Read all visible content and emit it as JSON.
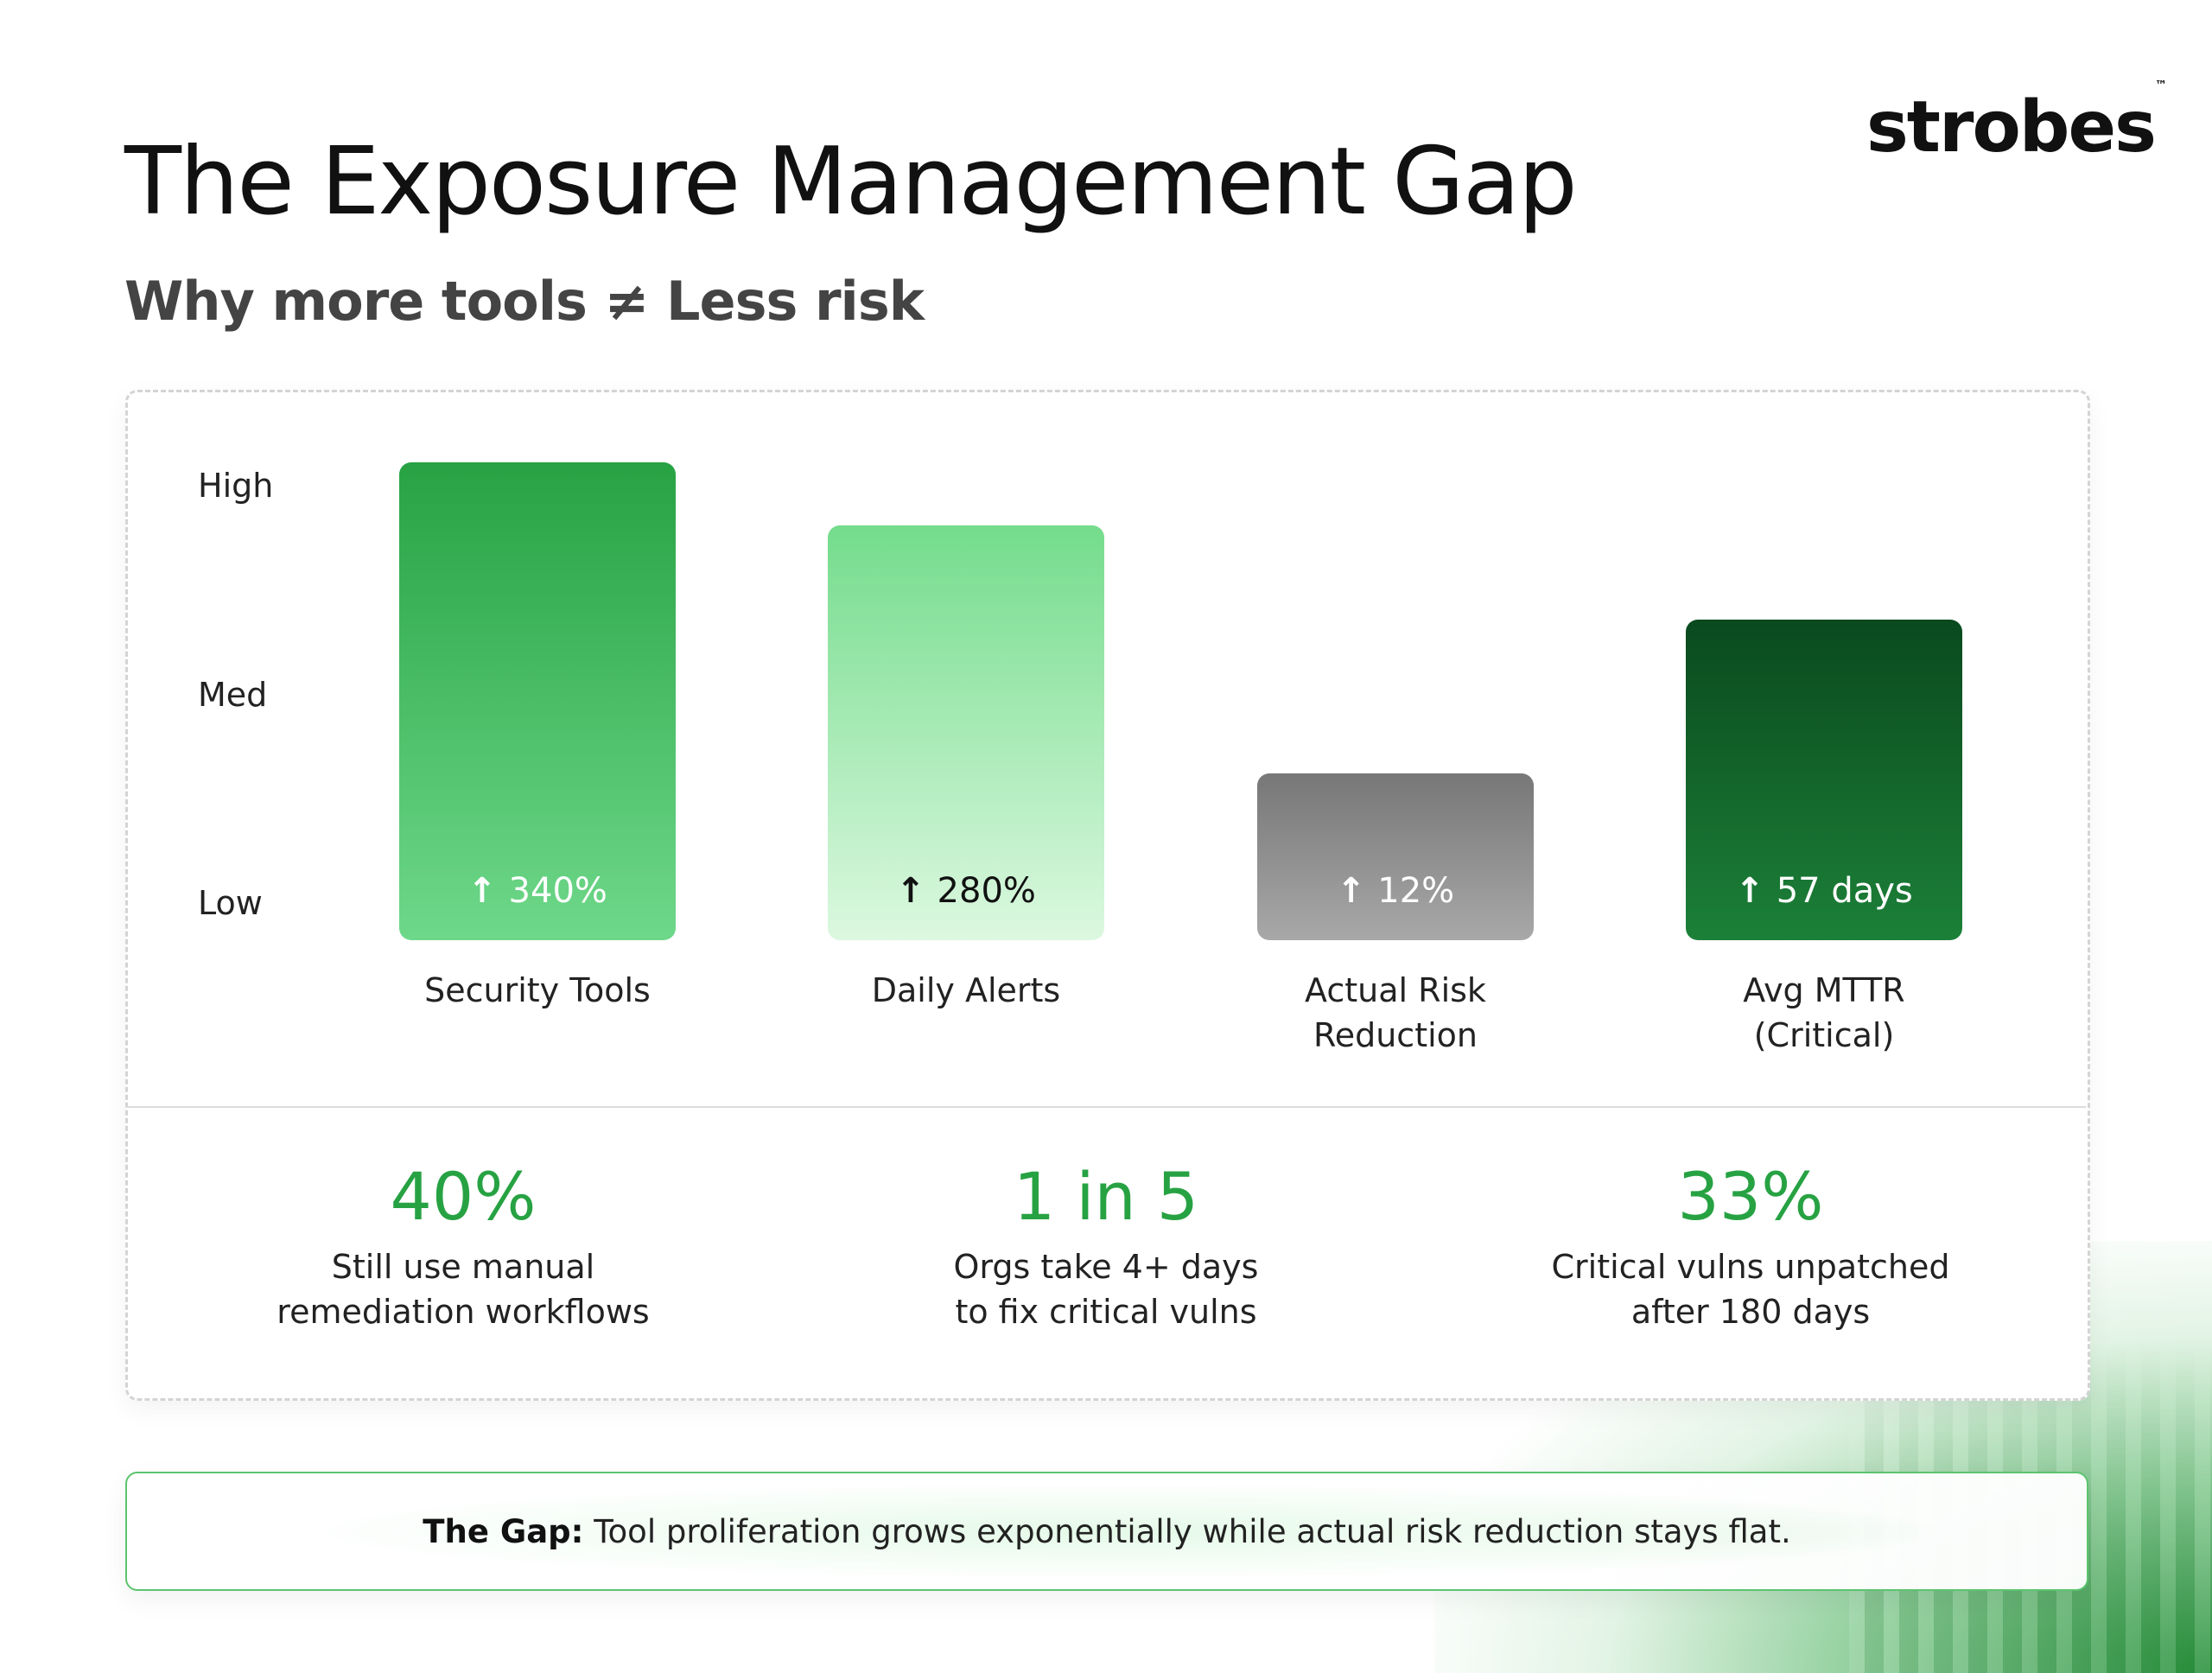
{
  "header": {
    "title": "The Exposure Management Gap",
    "subtitle": "Why more tools ≠ Less risk",
    "logo_text": "strobes",
    "logo_tm": "™"
  },
  "chart_data": {
    "type": "bar",
    "categories": [
      "Security Tools",
      "Daily Alerts",
      "Actual Risk Reduction",
      "Avg MTTR (Critical)"
    ],
    "category_lines": [
      [
        "Security Tools"
      ],
      [
        "Daily Alerts"
      ],
      [
        "Actual Risk",
        "Reduction"
      ],
      [
        "Avg MTTR",
        "(Critical)"
      ]
    ],
    "y_tick_labels": [
      "Low",
      "Med",
      "High"
    ],
    "y_tick_values": [
      0,
      1,
      2
    ],
    "ylim": [
      -0.18,
      2.11
    ],
    "values": [
      2.11,
      1.81,
      0.62,
      1.36
    ],
    "data_labels": [
      "340%",
      "280%",
      "12%",
      "57 days"
    ],
    "data_label_icon": "arrow-up-icon",
    "bar_colors": [
      [
        "#27a243",
        "#6ed88a"
      ],
      [
        "#74dc8c",
        "#dcf8e0"
      ],
      [
        "#777777",
        "#a8a8a8"
      ],
      [
        "#0a4a1e",
        "#1c8038"
      ]
    ],
    "label_colors": [
      "#ffffff",
      "#111111",
      "#ffffff",
      "#ffffff"
    ],
    "grid": false,
    "legend": "none"
  },
  "stats": [
    {
      "value": "40%",
      "lines": [
        "Still use manual",
        "remediation workflows"
      ]
    },
    {
      "value": "1 in 5",
      "lines": [
        "Orgs take 4+ days",
        "to fix critical vulns"
      ]
    },
    {
      "value": "33%",
      "lines": [
        "Critical vulns unpatched",
        "after 180 days"
      ]
    }
  ],
  "banner": {
    "label": "The Gap:",
    "text": " Tool proliferation grows exponentially while actual risk reduction stays flat."
  },
  "colors": {
    "accent": "#27a243",
    "text": "#111111"
  }
}
